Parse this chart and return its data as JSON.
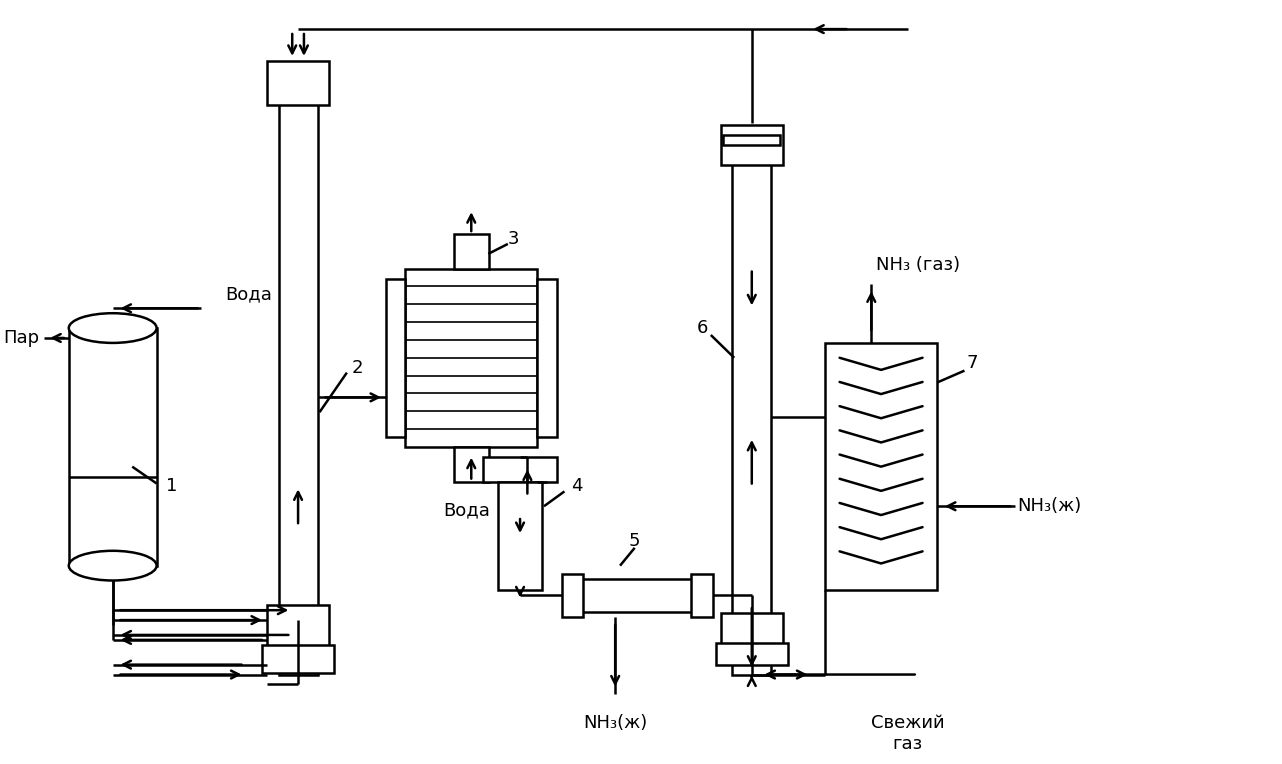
{
  "bg": "#ffffff",
  "lc": "#000000",
  "lw": 1.8,
  "labels": {
    "par": "Пар",
    "voda": "Вода",
    "voda2": "Вода",
    "nh3_gas": "NH₃ (газ)",
    "nh3_liq_bot": "NH₃(ж)",
    "nh3_liq_right": "NH₃(ж)",
    "fresh_gas": "Свежий\nгаз",
    "n1": "1",
    "n2": "2",
    "n3": "3",
    "n4": "4",
    "n5": "5",
    "n6": "6",
    "n7": "7"
  }
}
